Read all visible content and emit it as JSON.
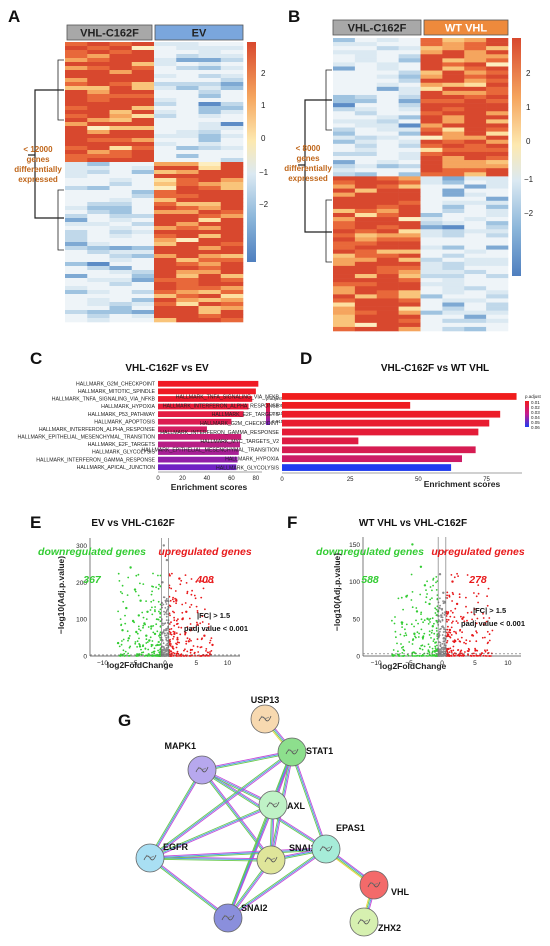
{
  "panels": {
    "A": {
      "letter": "A",
      "groups": [
        "VHL-C162F",
        "EV"
      ],
      "note_lines": [
        "< 12000",
        "genes",
        "differentially",
        "expressed"
      ],
      "colorbar_ticks": [
        "2",
        "1",
        "0",
        "−1",
        "−2"
      ]
    },
    "B": {
      "letter": "B",
      "groups": [
        "VHL-C162F",
        "WT VHL"
      ],
      "note_lines": [
        "< 8000",
        "genes",
        "differentially",
        "expressed"
      ],
      "colorbar_ticks": [
        "2",
        "1",
        "0",
        "−1",
        "−2"
      ]
    },
    "E": {
      "letter": "E",
      "title": "EV vs VHL-C162F"
    },
    "F": {
      "letter": "F",
      "title": "WT VHL vs VHL-C162F"
    },
    "G": {
      "letter": "G"
    }
  },
  "colors": {
    "group_gray": "#a8a8a8",
    "ev_blue": "#7aa6dd",
    "wt_orange": "#ee8a3c",
    "note_orange": "#c0661a",
    "up_red": "#e8191b",
    "down_green": "#33cc33",
    "nonsig_gray": "#8a8a8a"
  },
  "chart_data": [
    {
      "panel": "C",
      "type": "bar",
      "orientation": "horizontal",
      "title": "VHL-C162F vs EV",
      "xlabel": "Enrichment scores",
      "xlim": [
        0,
        85
      ],
      "xticks": [
        "0",
        "20",
        "40",
        "60",
        "80"
      ],
      "legend_title": "p.adjust",
      "legend_ticks": [
        "0.005",
        "0.010",
        "0.015"
      ],
      "categories": [
        "HALLMARK_G2M_CHECKPOINT",
        "HALLMARK_MITOTIC_SPINDLE",
        "HALLMARK_TNFA_SIGNALING_VIA_NFKB",
        "HALLMARK_HYPOXIA",
        "HALLMARK_P53_PATHWAY",
        "HALLMARK_APOPTOSIS",
        "HALLMARK_INTERFERON_ALPHA_RESPONSE",
        "HALLMARK_EPITHELIAL_MESENCHYMAL_TRANSITION",
        "HALLMARK_E2F_TARGETS",
        "HALLMARK_GLYCOLYSIS",
        "HALLMARK_INTERFERON_GAMMA_RESPONSE",
        "HALLMARK_APICAL_JUNCTION"
      ],
      "values": [
        82,
        80,
        77,
        74,
        70,
        60,
        40,
        68,
        67,
        66,
        65,
        64
      ],
      "colors": [
        "#ef1a24",
        "#ef1a24",
        "#ec1a2e",
        "#e81a38",
        "#e31c44",
        "#dc1d52",
        "#d41e62",
        "#c71e74",
        "#b71f86",
        "#a81f96",
        "#911fa8",
        "#6f21c4"
      ]
    },
    {
      "panel": "D",
      "type": "bar",
      "orientation": "horizontal",
      "title": "VHL-C162F vs WT VHL",
      "xlabel": "Enrichment scores",
      "xlim": [
        0,
        88
      ],
      "xticks": [
        "0",
        "25",
        "50",
        "75"
      ],
      "legend_title": "p.adjust",
      "legend_ticks": [
        "0.01",
        "0.02",
        "0.03",
        "0.04",
        "0.05",
        "0.06"
      ],
      "categories": [
        "HALLMARK_TNFA_SIGNALING_VIA_NFKB",
        "HALLMARK_INTERFERON_ALPHA_RESPONSE",
        "HALLMARK_E2F_TARGETS",
        "HALLMARK_G2M_CHECKPOINT",
        "HALLMARK_INTERFERON_GAMMA_RESPONSE",
        "HALLMARK_MYC_TARGETS_V2",
        "HALLMARK_EPITHELIAL_MESENCHYMAL_TRANSITION",
        "HALLMARK_HYPOXIA",
        "HALLMARK_GLYCOLYSIS"
      ],
      "values": [
        86,
        47,
        80,
        76,
        72,
        28,
        71,
        66,
        62
      ],
      "colors": [
        "#f01c1c",
        "#ee1c22",
        "#ec1c28",
        "#e81c30",
        "#e41c38",
        "#de1c44",
        "#d61c52",
        "#cc1c66",
        "#1f3cf0"
      ]
    },
    {
      "panel": "E",
      "type": "scatter",
      "xlabel": "log2FoldChange",
      "ylabel": "−log10(Adj.p.value)",
      "xlim": [
        -12,
        12
      ],
      "ylim": [
        0,
        320
      ],
      "xticks": [
        "−10",
        "−5",
        "0",
        "5",
        "10"
      ],
      "yticks": [
        "0",
        "100",
        "200",
        "300"
      ],
      "thresholds": {
        "abs_log2fc": 0.585,
        "padj_line": 3
      },
      "groups": [
        {
          "name": "downregulated genes",
          "count": "367"
        },
        {
          "name": "upregulated genes",
          "count": "408"
        }
      ],
      "annotation": [
        "|FC| > 1.5",
        "padj value < 0.001"
      ],
      "points": [
        [
          -5.5,
          240
        ],
        [
          -4.8,
          180
        ],
        [
          -3.9,
          150
        ],
        [
          -6.2,
          130
        ],
        [
          -2.8,
          120
        ],
        [
          -4.2,
          110
        ],
        [
          -5.1,
          95
        ],
        [
          -3.3,
          88
        ],
        [
          -2.2,
          80
        ],
        [
          -6.8,
          70
        ],
        [
          -4.6,
          65
        ],
        [
          -1.6,
          60
        ],
        [
          -3.0,
          55
        ],
        [
          -5.8,
          48
        ],
        [
          -2.5,
          42
        ],
        [
          -7.5,
          35
        ],
        [
          -1.2,
          30
        ],
        [
          -4.0,
          26
        ],
        [
          2.3,
          210
        ],
        [
          1.8,
          150
        ],
        [
          3.4,
          120
        ],
        [
          2.8,
          100
        ],
        [
          5.2,
          85
        ],
        [
          4.1,
          70
        ],
        [
          1.5,
          60
        ],
        [
          6.3,
          55
        ],
        [
          2.0,
          45
        ],
        [
          3.8,
          40
        ],
        [
          7.6,
          30
        ],
        [
          1.2,
          25
        ],
        [
          0.3,
          260
        ],
        [
          -0.4,
          200
        ],
        [
          0.2,
          150
        ],
        [
          0.5,
          90
        ],
        [
          -0.2,
          300
        ]
      ]
    },
    {
      "panel": "F",
      "type": "scatter",
      "xlabel": "log2FoldChange",
      "ylabel": "−log10(Adj.p.value)",
      "xlim": [
        -12,
        12
      ],
      "ylim": [
        0,
        160
      ],
      "xticks": [
        "−10",
        "−5",
        "0",
        "5",
        "10"
      ],
      "yticks": [
        "0",
        "50",
        "100",
        "150"
      ],
      "thresholds": {
        "abs_log2fc": 0.585,
        "padj_line": 3
      },
      "groups": [
        {
          "name": "downregulated genes",
          "count": "588"
        },
        {
          "name": "upregulated genes",
          "count": "278"
        }
      ],
      "annotation": [
        "|FC| > 1.5",
        "padj value < 0.001"
      ],
      "points": [
        [
          -4.5,
          150
        ],
        [
          -3.2,
          120
        ],
        [
          -2.6,
          95
        ],
        [
          -5.4,
          80
        ],
        [
          -1.9,
          70
        ],
        [
          -3.8,
          60
        ],
        [
          -2.2,
          50
        ],
        [
          -6.1,
          45
        ],
        [
          -1.4,
          40
        ],
        [
          -4.2,
          30
        ],
        [
          -2.9,
          25
        ],
        [
          1.6,
          100
        ],
        [
          2.3,
          70
        ],
        [
          3.1,
          50
        ],
        [
          1.2,
          35
        ],
        [
          4.6,
          28
        ],
        [
          2.0,
          20
        ],
        [
          0.4,
          140
        ],
        [
          -0.3,
          110
        ],
        [
          0.2,
          85
        ],
        [
          -0.6,
          60
        ]
      ]
    }
  ],
  "network": {
    "nodes": [
      {
        "id": "USP13",
        "label": "USP13",
        "color": "#f7d9b0",
        "icon": "protein-structure-icon"
      },
      {
        "id": "STAT1",
        "label": "STAT1",
        "color": "#8ddf8d",
        "icon": "protein-structure-icon"
      },
      {
        "id": "MAPK1",
        "label": "MAPK1",
        "color": "#b7a8ee",
        "icon": "protein-structure-icon"
      },
      {
        "id": "AXL",
        "label": "AXL",
        "color": "#bff2c6",
        "icon": "protein-structure-icon"
      },
      {
        "id": "EGFR",
        "label": "EGFR",
        "color": "#a9dff3",
        "icon": "protein-structure-icon"
      },
      {
        "id": "SNAI1",
        "label": "SNAI1",
        "color": "#dfe59a",
        "icon": "protein-structure-icon"
      },
      {
        "id": "EPAS1",
        "label": "EPAS1",
        "color": "#a6ecd8",
        "icon": "protein-structure-icon"
      },
      {
        "id": "VHL",
        "label": "VHL",
        "color": "#f36a6a",
        "icon": "protein-structure-icon"
      },
      {
        "id": "SNAI2",
        "label": "SNAI2",
        "color": "#8a8fdc",
        "icon": "protein-structure-icon"
      },
      {
        "id": "ZHX2",
        "label": "ZHX2",
        "color": "#d6f0b0",
        "icon": "protein-structure-icon"
      }
    ],
    "edges": [
      [
        "USP13",
        "STAT1"
      ],
      [
        "MAPK1",
        "STAT1"
      ],
      [
        "MAPK1",
        "EGFR"
      ],
      [
        "MAPK1",
        "SNAI1"
      ],
      [
        "MAPK1",
        "EPAS1"
      ],
      [
        "MAPK1",
        "AXL"
      ],
      [
        "STAT1",
        "AXL"
      ],
      [
        "STAT1",
        "EGFR"
      ],
      [
        "STAT1",
        "SNAI1"
      ],
      [
        "STAT1",
        "EPAS1"
      ],
      [
        "STAT1",
        "SNAI2"
      ],
      [
        "AXL",
        "EGFR"
      ],
      [
        "AXL",
        "SNAI1"
      ],
      [
        "AXL",
        "SNAI2"
      ],
      [
        "EGFR",
        "SNAI1"
      ],
      [
        "EGFR",
        "SNAI2"
      ],
      [
        "EGFR",
        "EPAS1"
      ],
      [
        "SNAI1",
        "SNAI2"
      ],
      [
        "SNAI1",
        "EPAS1"
      ],
      [
        "EPAS1",
        "SNAI2"
      ],
      [
        "EPAS1",
        "VHL"
      ],
      [
        "VHL",
        "ZHX2"
      ]
    ],
    "edge_colors": [
      "#c64ad7",
      "#4b9de0",
      "#6ac94c",
      "#f0d43a",
      "#222222",
      "#cfa0e8"
    ]
  }
}
